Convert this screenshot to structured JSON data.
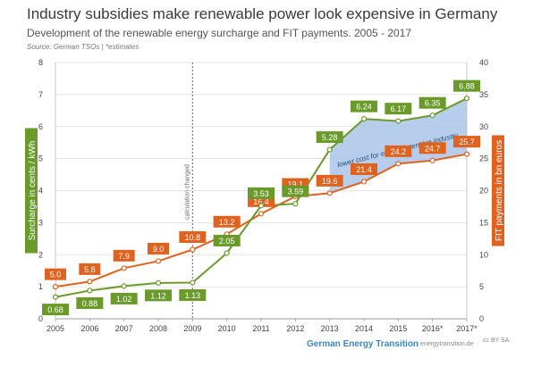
{
  "header": {
    "title": "Industry subsidies make renewable power look expensive in Germany",
    "subtitle": "Development of the renewable energy surcharge and FIT payments. 2005 - 2017",
    "source": "Source: German TSOs | *estimates"
  },
  "footer": {
    "brand": "German Energy Transition",
    "site": "energytransition.de",
    "license": "cc BY SA"
  },
  "colors": {
    "green": "#6a9a2a",
    "orange": "#e0621f",
    "band": "#a9c6e8",
    "grid": "#dddddd",
    "axis_text": "#444444"
  },
  "chart_data": {
    "type": "line",
    "categories": [
      "2005",
      "2006",
      "2007",
      "2008",
      "2009",
      "2010",
      "2011",
      "2012",
      "2013",
      "2014",
      "2015",
      "2016*",
      "2017*"
    ],
    "series": [
      {
        "axis": "left",
        "values": [
          0.68,
          0.88,
          1.02,
          1.12,
          1.13,
          2.05,
          3.53,
          3.59,
          5.28,
          6.24,
          6.17,
          6.35,
          6.88
        ],
        "labels": [
          "0.68",
          "0.88",
          "1.02",
          "1.12",
          "1.13",
          "2.05",
          "3.53",
          "3.59",
          "5.28",
          "6.24",
          "6.17",
          "6.35",
          "6.88"
        ]
      },
      {
        "axis": "right",
        "values": [
          5.0,
          5.8,
          7.9,
          9.0,
          10.8,
          13.2,
          16.4,
          19.1,
          19.6,
          21.4,
          24.2,
          24.7,
          25.7
        ],
        "labels": [
          "5.0",
          "5.8",
          "7.9",
          "9.0",
          "10.8",
          "13.2",
          "16.4",
          "19.1",
          "19.6",
          "21.4",
          "24.2",
          "24.7",
          "25.7"
        ]
      }
    ],
    "ylabel_left": "Surcharge in cents / kWh",
    "ylabel_right": "FIT payments in bn euros",
    "ylim_left": [
      0,
      8
    ],
    "ylim_right": [
      0,
      40
    ],
    "yticks_left": [
      "0",
      "1",
      "2",
      "3",
      "4",
      "5",
      "6",
      "7",
      "8"
    ],
    "yticks_right": [
      "0",
      "5",
      "10",
      "15",
      "20",
      "25",
      "30",
      "35",
      "40"
    ],
    "annotations": {
      "divider": "calculation changed",
      "band": "lower cost for energy-intensive industry"
    },
    "grid": true
  }
}
